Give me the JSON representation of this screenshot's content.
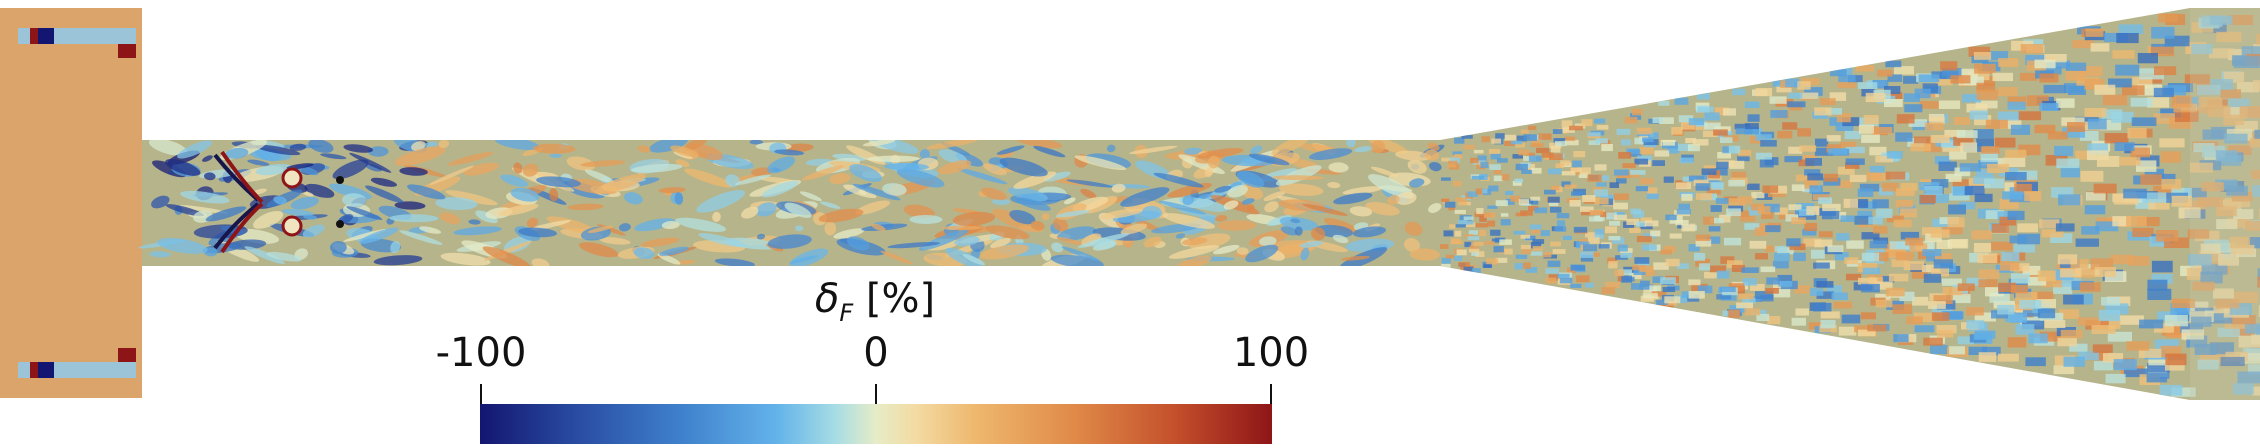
{
  "colorbar": {
    "symbol": "δ",
    "subscript": "F",
    "unit": "[%]",
    "tick_labels": [
      "-100",
      "0",
      "100"
    ],
    "range": [
      -100,
      100
    ],
    "stops": [
      {
        "value": -100,
        "color": "#131670"
      },
      {
        "value": -75,
        "color": "#2a4da3"
      },
      {
        "value": -50,
        "color": "#3e7fcb"
      },
      {
        "value": -25,
        "color": "#63b3ea"
      },
      {
        "value": -10,
        "color": "#a8dde4"
      },
      {
        "value": 0,
        "color": "#e6ecc7"
      },
      {
        "value": 10,
        "color": "#f3dba3"
      },
      {
        "value": 25,
        "color": "#eeb86e"
      },
      {
        "value": 50,
        "color": "#e08a48"
      },
      {
        "value": 75,
        "color": "#c4512c"
      },
      {
        "value": 100,
        "color": "#8e1517"
      }
    ]
  },
  "field": {
    "background_color": "#b6b48b",
    "inlet_color": "#dba46b",
    "outlet_color": "#c9c7a2"
  }
}
